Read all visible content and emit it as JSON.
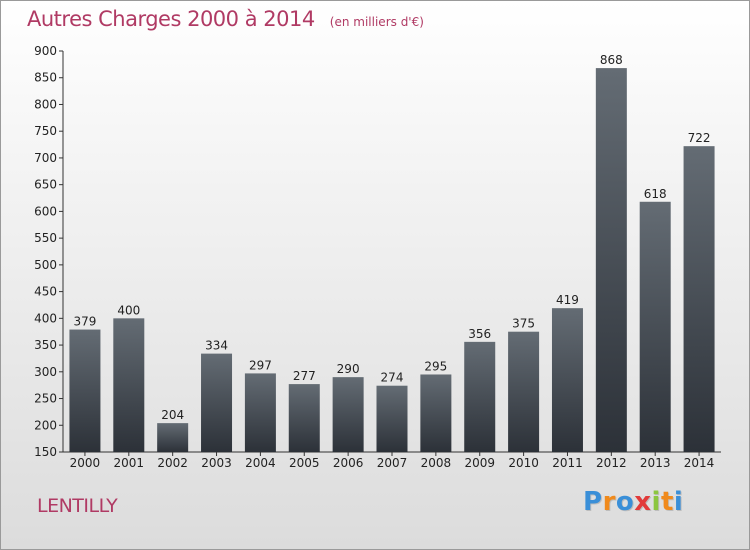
{
  "header": {
    "title": "Autres Charges 2000 à 2014",
    "subtitle": "(en milliers d'€)"
  },
  "commune": "LENTILLY",
  "logo": {
    "letters": [
      "P",
      "r",
      "o",
      "x",
      "i",
      "t",
      "i"
    ],
    "colors": [
      "#3a8fd8",
      "#f08a1c",
      "#3a8fd8",
      "#e23a3a",
      "#8cc63f",
      "#f08a1c",
      "#3a8fd8"
    ]
  },
  "colors": {
    "bar_top": "#646c74",
    "bar_bottom": "#2c3138",
    "title": "#b03a64"
  },
  "chart_data": {
    "type": "bar",
    "title": "Autres Charges 2000 à 2014",
    "categories": [
      "2000",
      "2001",
      "2002",
      "2003",
      "2004",
      "2005",
      "2006",
      "2007",
      "2008",
      "2009",
      "2010",
      "2011",
      "2012",
      "2013",
      "2014"
    ],
    "values": [
      379,
      400,
      204,
      334,
      297,
      277,
      290,
      274,
      295,
      356,
      375,
      419,
      868,
      618,
      722
    ],
    "ylim": [
      150,
      900
    ],
    "yticks": [
      150,
      200,
      250,
      300,
      350,
      400,
      450,
      500,
      550,
      600,
      650,
      700,
      750,
      800,
      850,
      900
    ],
    "grid": false,
    "data_labels": true
  }
}
